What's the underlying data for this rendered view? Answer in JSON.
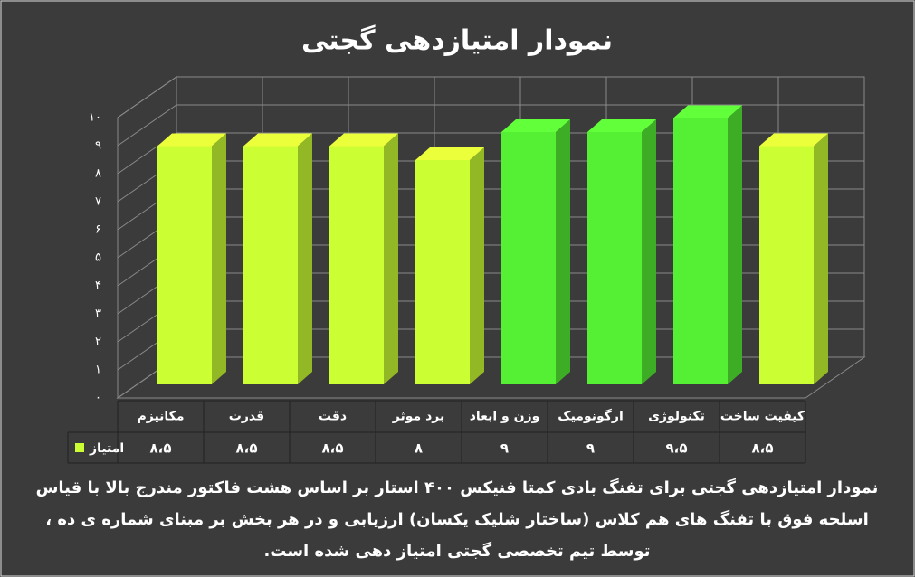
{
  "chart_data": {
    "type": "bar3d",
    "title": "نمودار امتیازدهی گجتی",
    "categories": [
      "مکانیزم",
      "قدرت",
      "دقت",
      "برد موثر",
      "وزن و ابعاد",
      "ارگونومیک",
      "تکنولوژی",
      "کیفیت ساخت"
    ],
    "series": [
      {
        "name": "امتیاز",
        "color": "#ccff33",
        "colors": [
          "#ccff33",
          "#ccff33",
          "#ccff33",
          "#ccff33",
          "#55f033",
          "#55f033",
          "#55f033",
          "#ccff33"
        ],
        "values": [
          8.5,
          8.5,
          8.5,
          8,
          9,
          9,
          9.5,
          8.5
        ],
        "value_labels": [
          "۸،۵",
          "۸،۵",
          "۸،۵",
          "۸",
          "۹",
          "۹",
          "۹،۵",
          "۸،۵"
        ]
      }
    ],
    "ylim": [
      0,
      10
    ],
    "yticks": [
      {
        "value": 0,
        "label": "۰"
      },
      {
        "value": 1,
        "label": "۱"
      },
      {
        "value": 2,
        "label": "۲"
      },
      {
        "value": 3,
        "label": "۳"
      },
      {
        "value": 4,
        "label": "۴"
      },
      {
        "value": 5,
        "label": "۵"
      },
      {
        "value": 6,
        "label": "۶"
      },
      {
        "value": 7,
        "label": "۷"
      },
      {
        "value": 8,
        "label": "۸"
      },
      {
        "value": 9,
        "label": "۹"
      },
      {
        "value": 10,
        "label": "۱۰"
      }
    ],
    "grid": true,
    "caption": [
      "نمودار امتیازدهی گجتی برای تفنگ بادی کمتا فنیکس ۴۰۰ استار بر اساس هشت فاکتور مندرج بالا با قیاس",
      "اسلحه فوق با تفنگ های هم کلاس (ساختار شلیک یکسان) ارزیابی و در هر بخش بر مبنای شماره ی ده ،",
      "توسط تیم تخصصی گجتی امتیاز دهی شده است."
    ]
  }
}
